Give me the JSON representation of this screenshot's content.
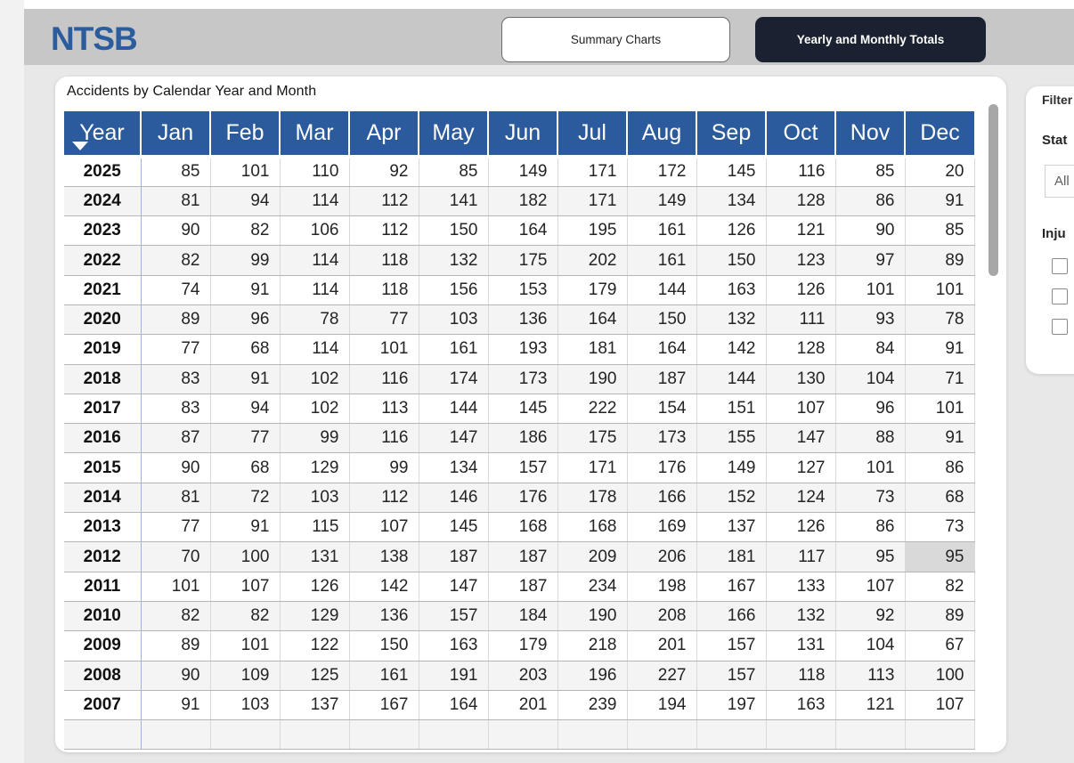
{
  "header": {
    "logo": "NTSB",
    "tabs": [
      {
        "label": "Summary Charts",
        "active": false
      },
      {
        "label": "Yearly and Monthly Totals",
        "active": true
      }
    ]
  },
  "table_card": {
    "title": "Accidents by Calendar Year and Month"
  },
  "chart_data": {
    "type": "table",
    "title": "Accidents by Calendar Year and Month",
    "columns": [
      "Year",
      "Jan",
      "Feb",
      "Mar",
      "Apr",
      "May",
      "Jun",
      "Jul",
      "Aug",
      "Sep",
      "Oct",
      "Nov",
      "Dec"
    ],
    "sort": {
      "column": "Year",
      "direction": "descending"
    },
    "rows": [
      {
        "year": "2025",
        "values": [
          85,
          101,
          110,
          92,
          85,
          149,
          171,
          172,
          145,
          116,
          85,
          20
        ]
      },
      {
        "year": "2024",
        "values": [
          81,
          94,
          114,
          112,
          141,
          182,
          171,
          149,
          134,
          128,
          86,
          91
        ]
      },
      {
        "year": "2023",
        "values": [
          90,
          82,
          106,
          112,
          150,
          164,
          195,
          161,
          126,
          121,
          90,
          85
        ]
      },
      {
        "year": "2022",
        "values": [
          82,
          99,
          114,
          118,
          132,
          175,
          202,
          161,
          150,
          123,
          97,
          89
        ]
      },
      {
        "year": "2021",
        "values": [
          74,
          91,
          114,
          118,
          156,
          153,
          179,
          144,
          163,
          126,
          101,
          101
        ]
      },
      {
        "year": "2020",
        "values": [
          89,
          96,
          78,
          77,
          103,
          136,
          164,
          150,
          132,
          111,
          93,
          78
        ]
      },
      {
        "year": "2019",
        "values": [
          77,
          68,
          114,
          101,
          161,
          193,
          181,
          164,
          142,
          128,
          84,
          91
        ]
      },
      {
        "year": "2018",
        "values": [
          83,
          91,
          102,
          116,
          174,
          173,
          190,
          187,
          144,
          130,
          104,
          71
        ]
      },
      {
        "year": "2017",
        "values": [
          83,
          94,
          102,
          113,
          144,
          145,
          222,
          154,
          151,
          107,
          96,
          101
        ]
      },
      {
        "year": "2016",
        "values": [
          87,
          77,
          99,
          116,
          147,
          186,
          175,
          173,
          155,
          147,
          88,
          91
        ]
      },
      {
        "year": "2015",
        "values": [
          90,
          68,
          129,
          99,
          134,
          157,
          171,
          176,
          149,
          127,
          101,
          86
        ]
      },
      {
        "year": "2014",
        "values": [
          81,
          72,
          103,
          112,
          146,
          176,
          178,
          166,
          152,
          124,
          73,
          68
        ]
      },
      {
        "year": "2013",
        "values": [
          77,
          91,
          115,
          107,
          145,
          168,
          168,
          169,
          137,
          126,
          86,
          73
        ]
      },
      {
        "year": "2012",
        "values": [
          70,
          100,
          131,
          138,
          187,
          187,
          209,
          206,
          181,
          117,
          95,
          95
        ]
      },
      {
        "year": "2011",
        "values": [
          101,
          107,
          126,
          142,
          147,
          187,
          234,
          198,
          167,
          133,
          107,
          82
        ]
      },
      {
        "year": "2010",
        "values": [
          82,
          82,
          129,
          136,
          157,
          184,
          190,
          208,
          166,
          132,
          92,
          89
        ]
      },
      {
        "year": "2009",
        "values": [
          89,
          101,
          122,
          150,
          163,
          179,
          218,
          201,
          157,
          131,
          104,
          67
        ]
      },
      {
        "year": "2008",
        "values": [
          90,
          109,
          125,
          161,
          191,
          203,
          196,
          227,
          157,
          118,
          113,
          100
        ]
      },
      {
        "year": "2007",
        "values": [
          91,
          103,
          137,
          167,
          164,
          201,
          239,
          194,
          197,
          163,
          121,
          107
        ]
      }
    ],
    "highlighted_cell": {
      "year": "2012",
      "column": "Dec",
      "value": 95
    }
  },
  "filter_panel": {
    "title": "Filter",
    "state_label": "Stat",
    "state_dropdown_value": "All",
    "injury_label": "Inju",
    "checkbox_count": 3
  },
  "colors": {
    "header_band": "#c8c7c7",
    "logo_blue": "#2b5c9e",
    "table_header_blue": "#2b5b9c",
    "active_tab_navy": "#1a2130",
    "row_stripe": "#f4f4f4",
    "highlight_cell": "#d9d9d9",
    "page_background": "#e9e8e8"
  }
}
